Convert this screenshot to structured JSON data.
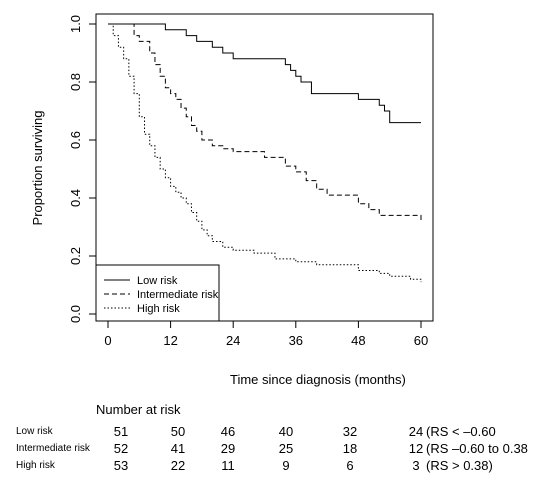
{
  "chart_data": {
    "type": "line",
    "step": true,
    "xlabel": "Time since diagnosis (months)",
    "ylabel": "Proportion surviving",
    "xlim": [
      0,
      60
    ],
    "ylim": [
      0,
      1
    ],
    "xticks": [
      "0",
      "12",
      "24",
      "36",
      "48",
      "60"
    ],
    "yticks": [
      "0.0",
      "0.2",
      "0.4",
      "0.6",
      "0.8",
      "1.0"
    ],
    "grid": false,
    "legend_position": "bottom-left",
    "series": [
      {
        "name": "Low risk",
        "linestyle": "solid",
        "x": [
          0,
          11,
          15,
          17,
          20,
          22,
          24,
          26,
          34,
          35,
          36,
          37,
          39,
          46,
          48,
          52,
          53,
          54,
          60
        ],
        "y": [
          1.0,
          0.98,
          0.96,
          0.94,
          0.92,
          0.9,
          0.88,
          0.88,
          0.86,
          0.84,
          0.82,
          0.8,
          0.76,
          0.76,
          0.74,
          0.72,
          0.7,
          0.66,
          0.66
        ]
      },
      {
        "name": "Intermediate risk",
        "linestyle": "dashed",
        "x": [
          0,
          5,
          6,
          8,
          9,
          10,
          11,
          12,
          13,
          14,
          15,
          16,
          17,
          18,
          20,
          22,
          24,
          30,
          34,
          36,
          38,
          40,
          42,
          48,
          50,
          52,
          54,
          60
        ],
        "y": [
          1.0,
          0.96,
          0.94,
          0.9,
          0.86,
          0.82,
          0.78,
          0.76,
          0.74,
          0.71,
          0.68,
          0.65,
          0.63,
          0.6,
          0.58,
          0.57,
          0.56,
          0.54,
          0.51,
          0.49,
          0.46,
          0.43,
          0.41,
          0.38,
          0.36,
          0.34,
          0.34,
          0.32
        ]
      },
      {
        "name": "High risk",
        "linestyle": "dotted",
        "x": [
          0,
          1,
          2,
          3,
          4,
          5,
          6,
          7,
          8,
          9,
          10,
          11,
          12,
          13,
          14,
          15,
          16,
          17,
          18,
          19,
          20,
          22,
          24,
          28,
          32,
          36,
          40,
          48,
          52,
          54,
          58,
          60
        ],
        "y": [
          1.0,
          0.96,
          0.92,
          0.88,
          0.82,
          0.76,
          0.68,
          0.62,
          0.58,
          0.54,
          0.5,
          0.47,
          0.44,
          0.42,
          0.4,
          0.38,
          0.35,
          0.32,
          0.29,
          0.27,
          0.25,
          0.23,
          0.22,
          0.21,
          0.19,
          0.18,
          0.17,
          0.15,
          0.14,
          0.13,
          0.12,
          0.11
        ]
      }
    ]
  },
  "number_at_risk": {
    "title": "Number at risk",
    "times": [
      0,
      12,
      24,
      36,
      48,
      60
    ],
    "rows": [
      {
        "label": "Low risk",
        "counts": [
          "51",
          "50",
          "46",
          "40",
          "32",
          "24"
        ],
        "note": "(RS < –0.60"
      },
      {
        "label": "Intermediate risk",
        "counts": [
          "52",
          "41",
          "29",
          "25",
          "18",
          "12"
        ],
        "note": "(RS –0.60 to 0.38"
      },
      {
        "label": "High risk",
        "counts": [
          "53",
          "22",
          "11",
          "9",
          "6",
          "3"
        ],
        "note": "(RS > 0.38)"
      }
    ]
  }
}
